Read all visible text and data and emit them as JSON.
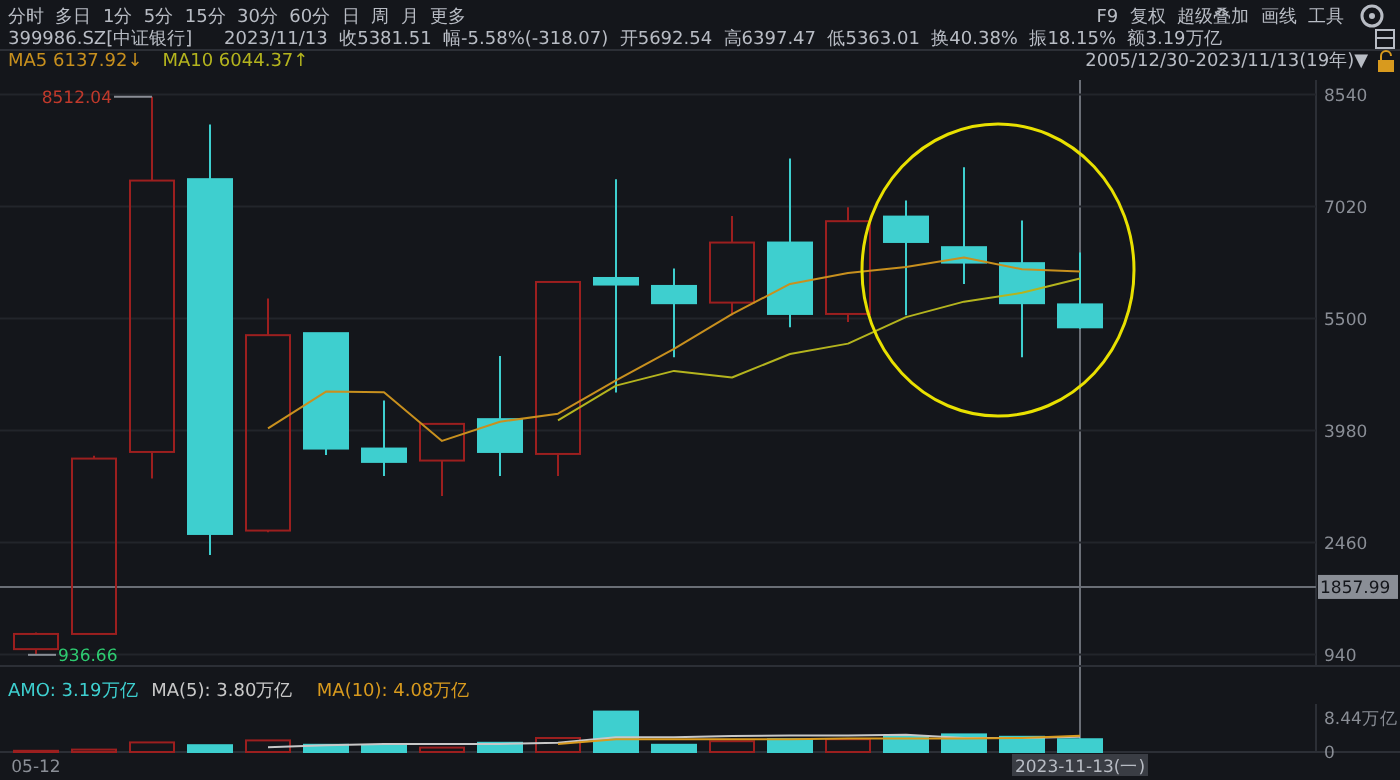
{
  "chart_data": [
    {
      "type": "other",
      "annotations": [
        "分时  多日  1分  5分  15分  30分  60分  日  周  月  更多",
        "F9  复权  超级叠加  画线  工具",
        "2005/12/30-2023/11/13(19年)▼"
      ]
    },
    {
      "type": "candlestick",
      "title": "399986.SZ[中证银行]",
      "subtitle": "2023/11/13  收5381.51  幅-5.58%(-318.07)  开5692.54  高6397.47  低5363.01  换40.38%  振18.15%  额3.19万亿",
      "categories": [
        null,
        null,
        null,
        null,
        null,
        null,
        null,
        null,
        null,
        null,
        null,
        null,
        null,
        null,
        null,
        null,
        null,
        null,
        null
      ],
      "ylim": [
        785,
        8738
      ],
      "yticks": [
        940,
        2460,
        3980,
        5500,
        7020,
        8540
      ],
      "grid": "y",
      "legend": "top",
      "tick_labels": "y",
      "series": [
        {
          "ohlc": [
            [
              1014,
              1240,
              936.66,
              1220
            ],
            [
              1220,
              3640,
              1220,
              3600
            ],
            [
              3690,
              8512.04,
              3330,
              7373
            ],
            [
              7392,
              8133,
              2290,
              2577
            ],
            [
              2623,
              5772,
              2600,
              5275
            ],
            [
              5302,
              5302,
              3647,
              3736
            ],
            [
              3736,
              4388,
              3365,
              3555
            ],
            [
              3573,
              4071,
              3093,
              4071
            ],
            [
              4135,
              4993,
              3365,
              3690
            ],
            [
              3663,
              5997,
              3365,
              5997
            ],
            [
              6051,
              7392,
              4496,
              5962
            ],
            [
              5943,
              6179,
              4976,
              5709
            ],
            [
              5717,
              6893,
              5546,
              6532
            ],
            [
              6532,
              7672,
              5384,
              5563
            ],
            [
              5563,
              7012,
              5454,
              6822
            ],
            [
              6884,
              7102,
              5546,
              6540
            ],
            [
              6469,
              7555,
              5970,
              6260
            ],
            [
              6252,
              6830,
              4976,
              5709
            ],
            [
              5692.54,
              6397.47,
              5363.01,
              5381.51
            ]
          ],
          "colors": [
            "#9c1f1f",
            "#9c1f1f",
            "#9c1f1f",
            "#3ecfcf",
            "#9c1f1f",
            "#3ecfcf",
            "#3ecfcf",
            "#9c1f1f",
            "#3ecfcf",
            "#9c1f1f",
            "#3ecfcf",
            "#3ecfcf",
            "#9c1f1f",
            "#3ecfcf",
            "#9c1f1f",
            "#3ecfcf",
            "#3ecfcf",
            "#3ecfcf",
            "#3ecfcf"
          ]
        },
        {
          "type": "line",
          "name": "MA5 6137.92↓",
          "color": "#c8901e",
          "values": [
            null,
            null,
            null,
            null,
            4010,
            4510,
            4500,
            3840,
            4100,
            4210,
            4660,
            5090,
            5560,
            5970,
            6120,
            6200,
            6330,
            6170,
            6137.92
          ]
        },
        {
          "type": "line",
          "name": "MA10 6044.37↑",
          "color": "#b4b41e",
          "values": [
            null,
            null,
            null,
            null,
            null,
            null,
            null,
            null,
            null,
            4120,
            4590,
            4790,
            4700,
            5020,
            5160,
            5520,
            5730,
            5850,
            6044.37
          ]
        }
      ],
      "annotations": [
        "8512.04",
        "936.66"
      ],
      "ref_lines": [
        {
          "axis": "y",
          "value": 1857.99,
          "label": "1857.99",
          "color": "#6a6e76"
        }
      ]
    },
    {
      "type": "bar",
      "categories": [
        "05-12",
        null,
        null,
        null,
        null,
        null,
        null,
        null,
        null,
        null,
        null,
        null,
        null,
        null,
        null,
        null,
        null,
        null,
        "2023-11-13(一)"
      ],
      "ylim": [
        0,
        12
      ],
      "yticks": [
        0,
        {
          "value": 8.44,
          "label": "8.44万亿"
        }
      ],
      "legend": "top left",
      "ref_lines": [
        {
          "axis": "x",
          "value": "2023-11-13(一)",
          "color": "#6a6e76"
        }
      ],
      "series": [
        {
          "name": "AMO: 3.19万亿",
          "color": "#3ecfcf",
          "values": [
            0.3,
            0.6,
            2.4,
            1.7,
            2.9,
            1.8,
            1.5,
            1.1,
            2.3,
            3.5,
            10.1,
            1.8,
            2.7,
            3.2,
            3.2,
            4.0,
            4.4,
            3.8,
            3.19
          ],
          "colors": [
            "#9c1f1f",
            "#9c1f1f",
            "#9c1f1f",
            "#3ecfcf",
            "#9c1f1f",
            "#3ecfcf",
            "#3ecfcf",
            "#9c1f1f",
            "#3ecfcf",
            "#9c1f1f",
            "#3ecfcf",
            "#3ecfcf",
            "#9c1f1f",
            "#3ecfcf",
            "#9c1f1f",
            "#3ecfcf",
            "#3ecfcf",
            "#3ecfcf",
            "#3ecfcf"
          ]
        },
        {
          "type": "line",
          "name": "MA(5): 3.80万亿",
          "color": "#c8c8c8",
          "values": [
            null,
            null,
            null,
            null,
            1.2,
            1.7,
            2.0,
            2.0,
            2.0,
            2.3,
            3.7,
            3.7,
            4.0,
            4.1,
            4.1,
            4.3,
            3.5,
            3.5,
            3.8
          ]
        },
        {
          "type": "line",
          "name": "MA(10): 4.08万亿",
          "color": "#d89a1e",
          "values": [
            null,
            null,
            null,
            null,
            null,
            null,
            null,
            null,
            null,
            2.0,
            3.2,
            3.2,
            3.2,
            3.2,
            3.4,
            3.4,
            3.4,
            3.5,
            4.08
          ]
        }
      ]
    }
  ]
}
